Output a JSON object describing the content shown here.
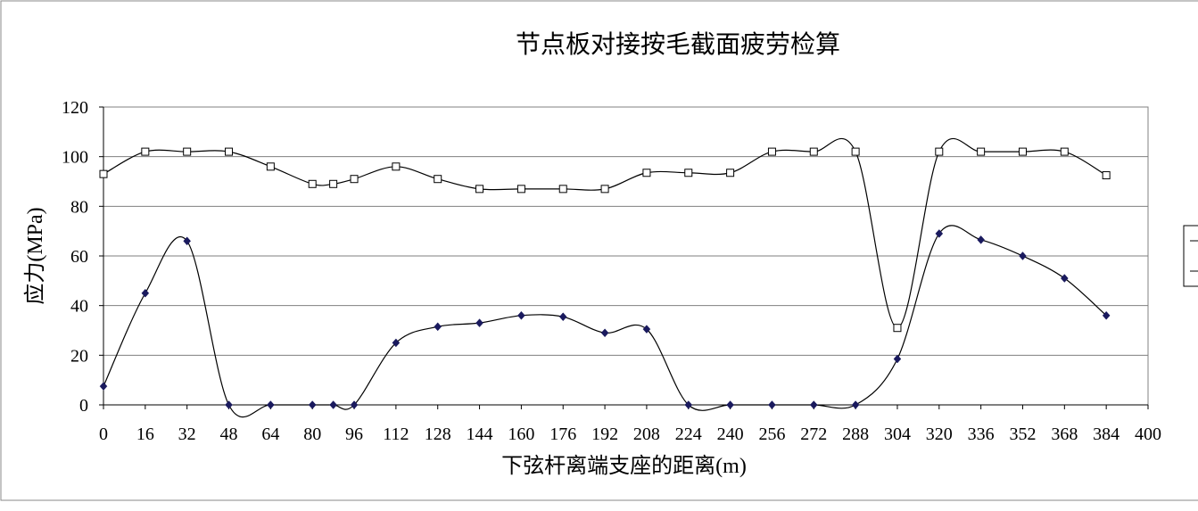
{
  "chart_data": {
    "type": "line",
    "title": "节点板对接按毛截面疲劳检算",
    "xlabel": "下弦杆离端支座的距离(m)",
    "ylabel": "应力(MPa)",
    "xlim": [
      0,
      400
    ],
    "ylim": [
      0,
      120
    ],
    "x_ticks": [
      "0",
      "16",
      "32",
      "48",
      "64",
      "80",
      "96",
      "112",
      "128",
      "144",
      "160",
      "176",
      "192",
      "208",
      "224",
      "240",
      "256",
      "272",
      "288",
      "304",
      "320",
      "336",
      "352",
      "368",
      "384",
      "400"
    ],
    "y_ticks": [
      "0",
      "20",
      "40",
      "60",
      "80",
      "100",
      "120"
    ],
    "grid": "horizontal",
    "legend_position": "right (partially clipped)",
    "series": [
      {
        "marker": "hollow-square",
        "color": "#000000",
        "x": [
          0,
          16,
          32,
          48,
          64,
          80,
          88,
          96,
          112,
          128,
          144,
          160,
          176,
          192,
          208,
          224,
          240,
          256,
          272,
          288,
          304,
          320,
          336,
          352,
          368,
          384
        ],
        "y": [
          93,
          102,
          102,
          102,
          96,
          89,
          89,
          91,
          96,
          91,
          87,
          87,
          87,
          87,
          93.5,
          93.5,
          93.5,
          102,
          102,
          102,
          31,
          102,
          102,
          102,
          102,
          92.5
        ]
      },
      {
        "marker": "filled-diamond",
        "color": "#1a1a5e",
        "x": [
          0,
          16,
          32,
          48,
          64,
          80,
          88,
          96,
          112,
          128,
          144,
          160,
          176,
          192,
          208,
          224,
          240,
          256,
          272,
          288,
          304,
          320,
          336,
          352,
          368,
          384
        ],
        "y": [
          7.5,
          45,
          66,
          0,
          0,
          0,
          0,
          0,
          25,
          31.5,
          33,
          36,
          35.5,
          29,
          30.5,
          0,
          0,
          0,
          0,
          0,
          18.5,
          69,
          66.5,
          60,
          51,
          36
        ]
      }
    ]
  }
}
